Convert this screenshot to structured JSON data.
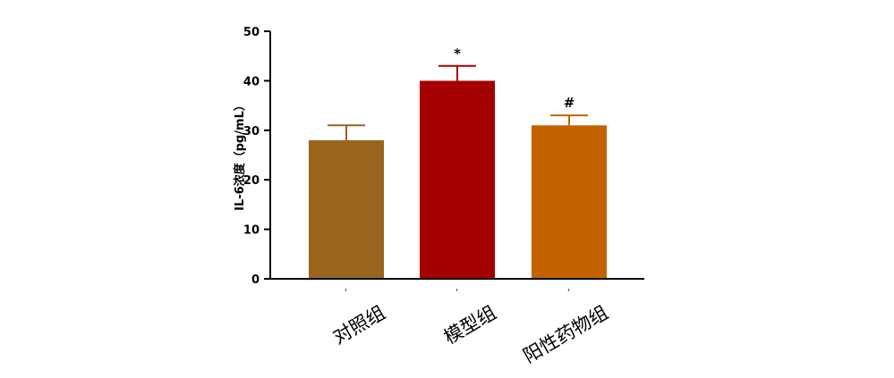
{
  "chart_data": {
    "type": "bar",
    "categories": [
      "对照组",
      "模型组",
      "阳性药物组"
    ],
    "values": [
      28,
      40,
      31
    ],
    "errors": [
      3,
      3,
      2
    ],
    "annotations": [
      "",
      "*",
      "#"
    ],
    "colors": [
      "#98651F",
      "#A40000",
      "#C46200"
    ],
    "ylabel": "IL-6浓度（pg/mL）",
    "ylim": [
      0,
      50
    ],
    "yticks": [
      0,
      10,
      20,
      30,
      40,
      50
    ],
    "grid": false
  }
}
